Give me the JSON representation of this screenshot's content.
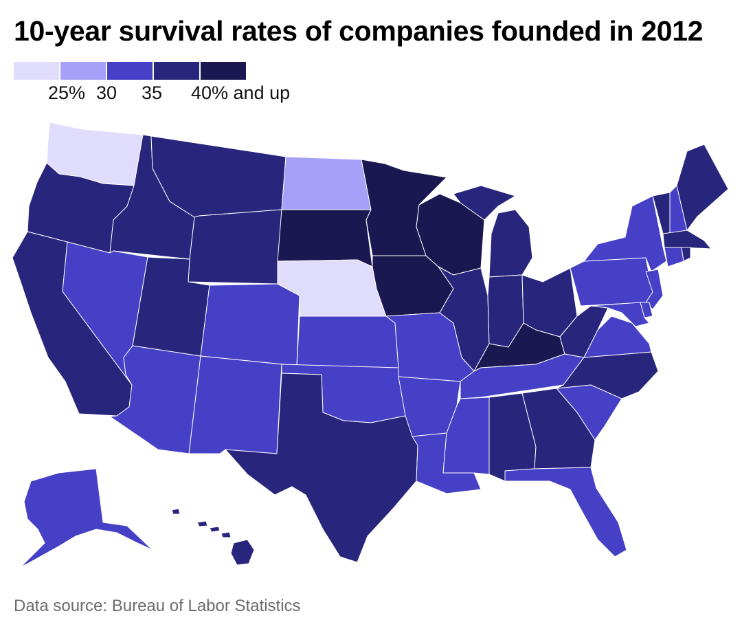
{
  "title": "10-year survival rates of companies founded in 2012",
  "source": "Data source: Bureau of Labor Statistics",
  "legend": {
    "labels": [
      "25%",
      "30",
      "35",
      "40% and up"
    ],
    "colors": [
      "#e0dcfb",
      "#a7a0f8",
      "#4640c6",
      "#28257c",
      "#1b1751"
    ]
  },
  "bins": {
    "b1": "#e0dcfb",
    "b2": "#a7a0f8",
    "b3": "#4640c6",
    "b4": "#28257c",
    "b5": "#1b1751"
  },
  "states": [
    {
      "id": "WA",
      "bin": "b1"
    },
    {
      "id": "OR",
      "bin": "b4"
    },
    {
      "id": "CA",
      "bin": "b4"
    },
    {
      "id": "ID",
      "bin": "b4"
    },
    {
      "id": "NV",
      "bin": "b3"
    },
    {
      "id": "MT",
      "bin": "b4"
    },
    {
      "id": "WY",
      "bin": "b4"
    },
    {
      "id": "UT",
      "bin": "b4"
    },
    {
      "id": "AZ",
      "bin": "b3"
    },
    {
      "id": "CO",
      "bin": "b3"
    },
    {
      "id": "NM",
      "bin": "b3"
    },
    {
      "id": "ND",
      "bin": "b2"
    },
    {
      "id": "SD",
      "bin": "b5"
    },
    {
      "id": "NE",
      "bin": "b1"
    },
    {
      "id": "KS",
      "bin": "b3"
    },
    {
      "id": "OK",
      "bin": "b3"
    },
    {
      "id": "TX",
      "bin": "b4"
    },
    {
      "id": "MN",
      "bin": "b5"
    },
    {
      "id": "IA",
      "bin": "b5"
    },
    {
      "id": "MO",
      "bin": "b3"
    },
    {
      "id": "AR",
      "bin": "b3"
    },
    {
      "id": "LA",
      "bin": "b3"
    },
    {
      "id": "WI",
      "bin": "b5"
    },
    {
      "id": "IL",
      "bin": "b4"
    },
    {
      "id": "MI",
      "bin": "b4"
    },
    {
      "id": "IN",
      "bin": "b4"
    },
    {
      "id": "OH",
      "bin": "b4"
    },
    {
      "id": "KY",
      "bin": "b5"
    },
    {
      "id": "TN",
      "bin": "b3"
    },
    {
      "id": "MS",
      "bin": "b3"
    },
    {
      "id": "AL",
      "bin": "b4"
    },
    {
      "id": "GA",
      "bin": "b4"
    },
    {
      "id": "FL",
      "bin": "b3"
    },
    {
      "id": "SC",
      "bin": "b3"
    },
    {
      "id": "NC",
      "bin": "b4"
    },
    {
      "id": "VA",
      "bin": "b3"
    },
    {
      "id": "WV",
      "bin": "b4"
    },
    {
      "id": "PA",
      "bin": "b3"
    },
    {
      "id": "NY",
      "bin": "b3"
    },
    {
      "id": "VT",
      "bin": "b4"
    },
    {
      "id": "NH",
      "bin": "b3"
    },
    {
      "id": "ME",
      "bin": "b4"
    },
    {
      "id": "MA",
      "bin": "b4"
    },
    {
      "id": "CT",
      "bin": "b3"
    },
    {
      "id": "RI",
      "bin": "b4"
    },
    {
      "id": "NJ",
      "bin": "b3"
    },
    {
      "id": "DE",
      "bin": "b3"
    },
    {
      "id": "MD",
      "bin": "b3"
    },
    {
      "id": "AK",
      "bin": "b3"
    },
    {
      "id": "HI",
      "bin": "b4"
    }
  ]
}
